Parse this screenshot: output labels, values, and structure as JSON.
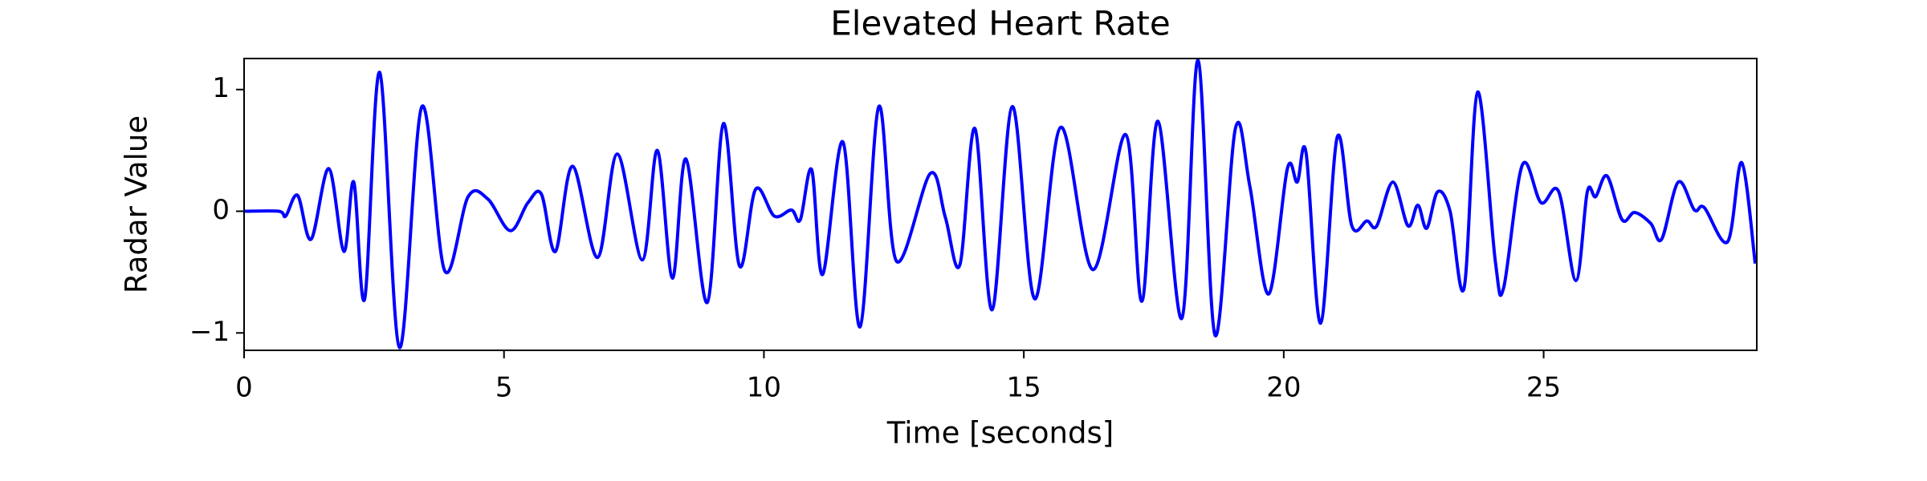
{
  "chart_data": {
    "type": "line",
    "title": "Elevated Heart Rate",
    "x_label": "Time [seconds]",
    "y_label": "Radar Value",
    "xlim": [
      0,
      29.1
    ],
    "ylim": [
      -1.143,
      1.255
    ],
    "xticks": [
      0,
      5,
      10,
      15,
      20,
      25
    ],
    "yticks": [
      {
        "value": -1,
        "label": "−1"
      },
      0,
      1
    ],
    "series": [
      {
        "name": "Radar Value",
        "color": "#0000ff",
        "x": [
          0,
          0.67,
          0.8,
          1.03,
          1.29,
          1.63,
          1.92,
          2.11,
          2.32,
          2.61,
          2.99,
          3.42,
          3.86,
          4.31,
          4.69,
          5.12,
          5.46,
          5.72,
          5.99,
          6.32,
          6.8,
          7.18,
          7.66,
          7.95,
          8.24,
          8.5,
          8.91,
          9.22,
          9.53,
          9.84,
          10.2,
          10.53,
          10.7,
          10.92,
          11.13,
          11.52,
          11.85,
          12.21,
          12.55,
          13.2,
          13.49,
          13.77,
          14.06,
          14.39,
          14.78,
          15.21,
          15.71,
          16.33,
          16.96,
          17.27,
          17.58,
          18.04,
          18.35,
          18.68,
          19.07,
          19.35,
          19.71,
          20.07,
          20.26,
          20.43,
          20.71,
          21.03,
          21.31,
          21.6,
          21.79,
          22.1,
          22.39,
          22.58,
          22.75,
          22.96,
          23.2,
          23.47,
          23.73,
          24.07,
          24.23,
          24.59,
          24.95,
          25.29,
          25.62,
          25.84,
          26.0,
          26.22,
          26.51,
          26.75,
          27.06,
          27.27,
          27.59,
          27.9,
          28.09,
          28.54,
          28.81,
          29.07
        ],
        "values": [
          0,
          0,
          -0.04,
          0.13,
          -0.23,
          0.35,
          -0.33,
          0.24,
          -0.72,
          1.14,
          -1.12,
          0.86,
          -0.49,
          0.12,
          0.1,
          -0.16,
          0.07,
          0.14,
          -0.33,
          0.37,
          -0.38,
          0.47,
          -0.4,
          0.5,
          -0.55,
          0.43,
          -0.75,
          0.72,
          -0.45,
          0.18,
          -0.04,
          0.01,
          -0.07,
          0.34,
          -0.52,
          0.57,
          -0.95,
          0.86,
          -0.41,
          0.31,
          -0.05,
          -0.44,
          0.68,
          -0.81,
          0.86,
          -0.72,
          0.69,
          -0.48,
          0.63,
          -0.74,
          0.74,
          -0.88,
          1.24,
          -1.02,
          0.68,
          0.2,
          -0.68,
          0.35,
          0.24,
          0.48,
          -0.92,
          0.61,
          -0.12,
          -0.08,
          -0.12,
          0.24,
          -0.12,
          0.05,
          -0.14,
          0.16,
          0,
          -0.63,
          0.98,
          -0.41,
          -0.63,
          0.38,
          0.07,
          0.16,
          -0.57,
          0.16,
          0.12,
          0.29,
          -0.07,
          -0.01,
          -0.1,
          -0.23,
          0.24,
          0.01,
          0.03,
          -0.25,
          0.4,
          -0.43
        ]
      }
    ]
  }
}
